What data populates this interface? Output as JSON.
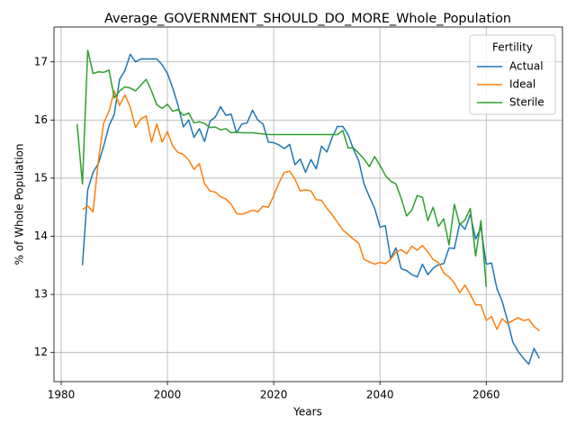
{
  "chart_data": {
    "type": "line",
    "title": "Average_GOVERNMENT_SHOULD_DO_MORE_Whole_Population",
    "xlabel": "Years",
    "ylabel": "% of Whole Population",
    "legend_title": "Fertility",
    "legend": "upper right",
    "grid": true,
    "xlim": [
      1978.65,
      2074.35
    ],
    "xticks": [
      1980,
      2000,
      2020,
      2040,
      2060
    ],
    "ylim": [
      11.5,
      17.6
    ],
    "yticks": [
      12,
      13,
      14,
      15,
      16,
      17
    ],
    "x": [
      1983,
      1984,
      1985,
      1986,
      1987,
      1988,
      1989,
      1990,
      1991,
      1992,
      1993,
      1994,
      1995,
      1996,
      1997,
      1998,
      1999,
      2000,
      2001,
      2002,
      2003,
      2004,
      2005,
      2006,
      2007,
      2008,
      2009,
      2010,
      2011,
      2012,
      2013,
      2014,
      2015,
      2016,
      2017,
      2018,
      2019,
      2020,
      2021,
      2022,
      2023,
      2024,
      2025,
      2026,
      2027,
      2028,
      2029,
      2030,
      2031,
      2032,
      2033,
      2034,
      2035,
      2036,
      2037,
      2038,
      2039,
      2040,
      2041,
      2042,
      2043,
      2044,
      2045,
      2046,
      2047,
      2048,
      2049,
      2050,
      2051,
      2052,
      2053,
      2054,
      2055,
      2056,
      2057,
      2058,
      2059,
      2060,
      2061,
      2062,
      2063,
      2064,
      2065,
      2066,
      2067,
      2068,
      2069,
      2070
    ],
    "series": [
      {
        "name": "Actual",
        "color": "#1f77b4",
        "values": [
          null,
          13.5,
          14.8,
          15.1,
          15.25,
          15.55,
          15.9,
          16.1,
          16.7,
          16.85,
          17.13,
          17.0,
          17.05,
          17.05,
          17.05,
          17.05,
          16.95,
          16.8,
          16.55,
          16.25,
          15.88,
          16.0,
          15.7,
          15.85,
          15.63,
          15.98,
          16.05,
          16.23,
          16.08,
          16.1,
          15.78,
          15.93,
          15.95,
          16.17,
          16.0,
          15.93,
          15.62,
          15.61,
          15.57,
          15.51,
          15.58,
          15.23,
          15.33,
          15.1,
          15.32,
          15.16,
          15.55,
          15.45,
          15.7,
          15.89,
          15.89,
          15.75,
          15.5,
          15.3,
          14.9,
          14.68,
          14.48,
          14.16,
          14.18,
          13.62,
          13.8,
          13.44,
          13.41,
          13.34,
          13.3,
          13.52,
          13.34,
          13.45,
          13.51,
          13.53,
          13.8,
          13.79,
          14.22,
          14.12,
          14.38,
          13.95,
          14.15,
          13.52,
          13.54,
          13.1,
          12.88,
          12.55,
          12.18,
          12.02,
          11.9,
          11.8,
          12.07,
          11.9
        ]
      },
      {
        "name": "Ideal",
        "color": "#ff7f0e",
        "values": [
          null,
          14.46,
          14.52,
          14.42,
          15.3,
          15.95,
          16.15,
          16.5,
          16.25,
          16.43,
          16.22,
          15.87,
          16.02,
          16.07,
          15.62,
          15.93,
          15.62,
          15.8,
          15.55,
          15.44,
          15.41,
          15.31,
          15.15,
          15.25,
          14.9,
          14.78,
          14.76,
          14.68,
          14.64,
          14.55,
          14.39,
          14.38,
          14.41,
          14.45,
          14.42,
          14.52,
          14.5,
          14.7,
          14.92,
          15.1,
          15.12,
          14.98,
          14.78,
          14.8,
          14.78,
          14.63,
          14.62,
          14.48,
          14.37,
          14.24,
          14.11,
          14.03,
          13.95,
          13.88,
          13.6,
          13.56,
          13.52,
          13.55,
          13.53,
          13.6,
          13.73,
          13.77,
          13.7,
          13.83,
          13.76,
          13.84,
          13.73,
          13.6,
          13.55,
          13.37,
          13.3,
          13.2,
          13.03,
          13.16,
          13.0,
          12.82,
          12.82,
          12.55,
          12.62,
          12.4,
          12.58,
          12.5,
          12.55,
          12.6,
          12.55,
          12.57,
          12.45,
          12.37
        ]
      },
      {
        "name": "Sterile",
        "color": "#2ca02c",
        "values": [
          15.93,
          14.9,
          17.2,
          16.8,
          16.83,
          16.82,
          16.86,
          16.38,
          16.5,
          16.57,
          16.55,
          16.5,
          16.6,
          16.7,
          16.5,
          16.26,
          16.2,
          16.27,
          16.15,
          16.18,
          16.08,
          16.12,
          15.95,
          15.97,
          15.94,
          15.87,
          15.88,
          15.83,
          15.85,
          15.78,
          15.79,
          15.78,
          15.78,
          15.78,
          15.77,
          15.76,
          15.75,
          15.75,
          15.75,
          15.75,
          15.75,
          15.75,
          15.75,
          15.75,
          15.75,
          15.75,
          15.75,
          15.75,
          15.75,
          15.75,
          15.82,
          15.52,
          15.52,
          15.43,
          15.33,
          15.2,
          15.37,
          15.22,
          15.05,
          14.95,
          14.9,
          14.65,
          14.35,
          14.45,
          14.7,
          14.67,
          14.27,
          14.5,
          14.17,
          14.3,
          13.85,
          14.55,
          14.2,
          14.28,
          14.48,
          13.66,
          14.27,
          13.13,
          null,
          null,
          null,
          null,
          null,
          null,
          null,
          null,
          null,
          null
        ]
      }
    ]
  }
}
